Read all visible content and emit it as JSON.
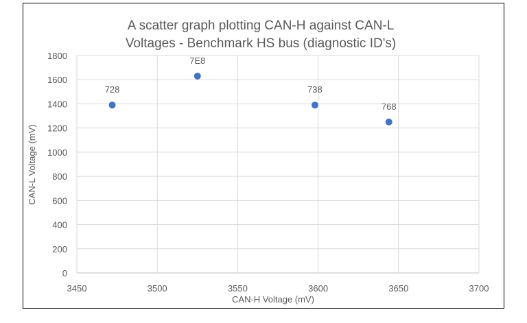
{
  "chart_data": {
    "type": "scatter",
    "title": "A scatter graph plotting CAN-H against CAN-L Voltages - Benchmark HS bus (diagnostic ID's)",
    "title_lines": [
      "A scatter graph plotting CAN-H against CAN-L",
      "Voltages - Benchmark HS bus (diagnostic ID's)"
    ],
    "xlabel": "CAN-H Voltage (mV)",
    "ylabel": "CAN-L Voltage (mV)",
    "xlim": [
      3450,
      3700
    ],
    "ylim": [
      0,
      1800
    ],
    "xticks": [
      3450,
      3500,
      3550,
      3600,
      3650,
      3700
    ],
    "yticks": [
      0,
      200,
      400,
      600,
      800,
      1000,
      1200,
      1400,
      1600,
      1800
    ],
    "grid": true,
    "legend": "none",
    "marker_color": "#4472C4",
    "points": [
      {
        "label": "728",
        "x": 3472,
        "y": 1390
      },
      {
        "label": "7E8",
        "x": 3525,
        "y": 1630
      },
      {
        "label": "738",
        "x": 3598,
        "y": 1390
      },
      {
        "label": "768",
        "x": 3644,
        "y": 1250
      }
    ]
  }
}
